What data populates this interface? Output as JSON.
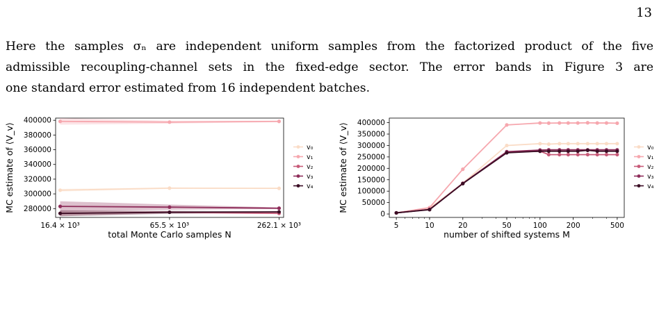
{
  "page": {
    "number": "13",
    "paragraph_lines": [
      "Here the samples σₙ are independent uniform samples from the factorized product of the five",
      "admissible recoupling-channel sets in the fixed-edge sector. The error bands in Figure 3 are",
      "one standard error estimated from 16 independent batches."
    ]
  },
  "colors": {
    "v0": "#fadcc6",
    "v1": "#f6a7ae",
    "v2": "#c75a78",
    "v3": "#8e2d5a",
    "v4": "#3a0d24"
  },
  "chart_data": [
    {
      "type": "line",
      "xlabel": "total Monte Carlo samples N",
      "ylabel": "MC estimate of ⟨V_v⟩",
      "x_scale": "log",
      "x": [
        16400,
        65500,
        262100
      ],
      "x_tick_labels": [
        "16.4 × 10³",
        "65.5 × 10³",
        "262.1 × 10³"
      ],
      "ylim": [
        268000,
        403000
      ],
      "y_ticks": [
        280000,
        300000,
        320000,
        340000,
        360000,
        380000,
        400000
      ],
      "legend_position": "right-outside",
      "series": [
        {
          "name": "v₀",
          "values": [
            305000,
            307800,
            307500
          ],
          "err": [
            1800,
            1000,
            800
          ]
        },
        {
          "name": "v₁",
          "values": [
            398500,
            397500,
            398500
          ],
          "err": [
            4500,
            2000,
            1000
          ]
        },
        {
          "name": "v₂",
          "values": [
            273500,
            275000,
            273500
          ],
          "err": [
            3500,
            1500,
            800
          ]
        },
        {
          "name": "v₃",
          "values": [
            283000,
            282000,
            280500
          ],
          "err": [
            7000,
            3500,
            1000
          ]
        },
        {
          "name": "v₄",
          "values": [
            273500,
            275000,
            275500
          ],
          "err": [
            4000,
            2000,
            800
          ]
        }
      ]
    },
    {
      "type": "line",
      "xlabel": "number of shifted systems M",
      "ylabel": "MC estimate of ⟨V_v⟩",
      "x_scale": "log",
      "x": [
        5,
        10,
        20,
        50,
        100,
        120,
        150,
        180,
        220,
        270,
        330,
        400,
        500
      ],
      "x_ticks": [
        5,
        10,
        20,
        50,
        100,
        200,
        500
      ],
      "ylim": [
        -15000,
        420000
      ],
      "y_ticks": [
        0,
        50000,
        100000,
        150000,
        200000,
        250000,
        300000,
        350000,
        400000
      ],
      "legend_position": "right-outside",
      "series": [
        {
          "name": "v₀",
          "values": [
            5000,
            25000,
            135000,
            300000,
            308000,
            306000,
            308000,
            308000,
            308000,
            308000,
            308000,
            308000,
            308000
          ]
        },
        {
          "name": "v₁",
          "values": [
            5000,
            28000,
            196000,
            390000,
            398500,
            398000,
            398500,
            398500,
            398500,
            399500,
            398500,
            398500,
            397500
          ]
        },
        {
          "name": "v₂",
          "values": [
            5000,
            20000,
            134000,
            270000,
            275000,
            260000,
            260000,
            260000,
            260000,
            260000,
            260000,
            260000,
            260000
          ]
        },
        {
          "name": "v₃",
          "values": [
            5000,
            20000,
            134000,
            273000,
            280000,
            281000,
            281000,
            281000,
            281000,
            281000,
            281000,
            281000,
            281000
          ]
        },
        {
          "name": "v₄",
          "values": [
            5000,
            19000,
            133000,
            268000,
            275000,
            275000,
            275000,
            275000,
            275000,
            279000,
            275000,
            275000,
            275000
          ]
        }
      ]
    }
  ]
}
